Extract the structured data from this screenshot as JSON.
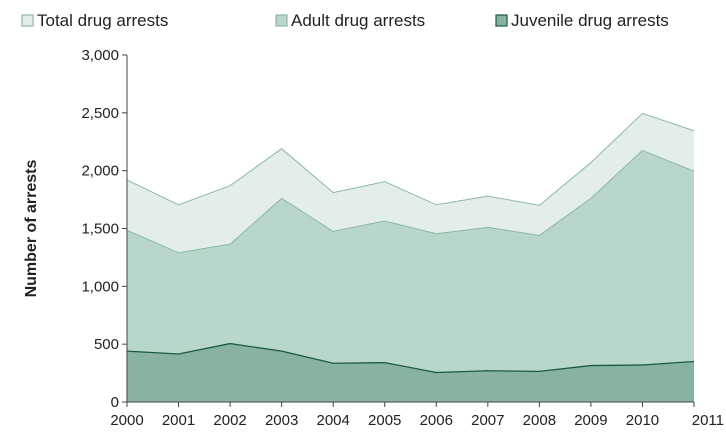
{
  "chart_data": {
    "type": "area",
    "x": [
      "2000",
      "2001",
      "2002",
      "2003",
      "2004",
      "2005",
      "2006",
      "2007",
      "2008",
      "2009",
      "2010",
      "2011"
    ],
    "series": [
      {
        "name": "Total drug arrests",
        "values": [
          1920,
          1705,
          1870,
          2190,
          1810,
          1905,
          1705,
          1780,
          1700,
          2070,
          2495,
          2345
        ],
        "color": "#e3eeea",
        "stroke": "#8db8a5"
      },
      {
        "name": "Adult drug arrests",
        "values": [
          1485,
          1290,
          1365,
          1760,
          1475,
          1565,
          1455,
          1510,
          1440,
          1760,
          2175,
          1995
        ],
        "color": "#b9d6ca",
        "stroke": "#8db8a5"
      },
      {
        "name": "Juvenile drug arrests",
        "values": [
          440,
          415,
          505,
          440,
          335,
          340,
          255,
          270,
          265,
          315,
          320,
          350
        ],
        "color": "#88b3a1",
        "stroke": "#1a5c3e"
      }
    ],
    "ylabel": "Number of arrests",
    "xlabel": "",
    "ylim": [
      0,
      3000
    ],
    "yticks": [
      0,
      500,
      1000,
      1500,
      2000,
      2500,
      3000
    ],
    "ytick_labels": [
      "0",
      "500",
      "1,000",
      "1,500",
      "2,000",
      "2,500",
      "3,000"
    ],
    "grid": false,
    "legend_position": "top"
  }
}
